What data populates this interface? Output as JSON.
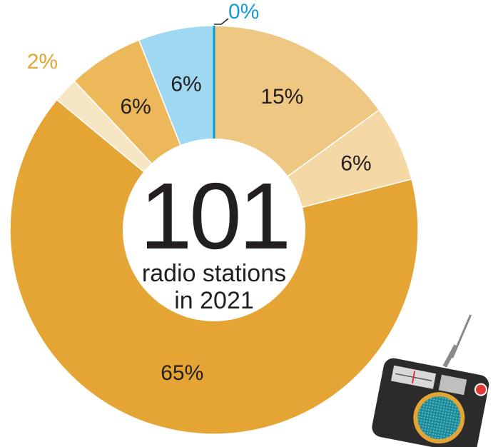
{
  "chart_data": {
    "type": "pie",
    "style": "donut",
    "center": {
      "value": "101",
      "line1": "radio stations",
      "line2": "in 2021"
    },
    "slices": [
      {
        "value": 15,
        "label": "15%",
        "color": "#eec783"
      },
      {
        "value": 6,
        "label": "6%",
        "color": "#f4d9a6"
      },
      {
        "value": 65,
        "label": "65%",
        "color": "#e5a535"
      },
      {
        "value": 2,
        "label": "2%",
        "color": "#f7e6c4",
        "label_color": "#e5a535"
      },
      {
        "value": 6,
        "label": "6%",
        "color": "#ecb85a"
      },
      {
        "value": 6,
        "label": "6%",
        "color": "#9fd8f1"
      },
      {
        "value": 0,
        "label": "0%",
        "color": "#0f9ad6",
        "label_color": "#1a9bd7"
      }
    ]
  },
  "icons": {
    "radio": "radio-icon"
  }
}
